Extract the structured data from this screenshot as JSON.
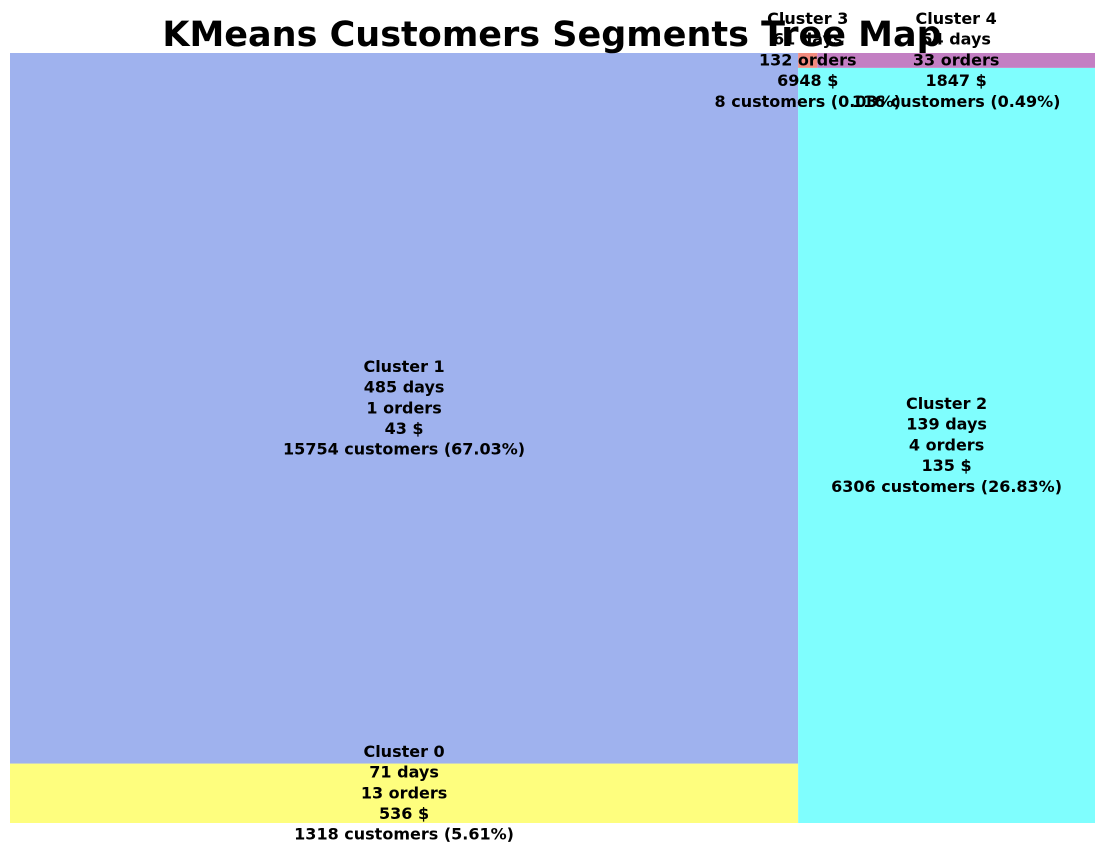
{
  "chart_data": {
    "type": "treemap",
    "title": "KMeans Customers Segments Tree Map",
    "clusters": [
      {
        "name": "Cluster 0",
        "days": "71 days",
        "orders": "13 orders",
        "amount": "536 $",
        "customers_label": "1318 customers (5.61%)",
        "customers": 1318,
        "share_pct": 5.61,
        "color": "#FEFE7E"
      },
      {
        "name": "Cluster 1",
        "days": "485 days",
        "orders": "1 orders",
        "amount": "43 $",
        "customers_label": "15754 customers (67.03%)",
        "customers": 15754,
        "share_pct": 67.03,
        "color": "#9FB2EE"
      },
      {
        "name": "Cluster 2",
        "days": "139 days",
        "orders": "4 orders",
        "amount": "135 $",
        "customers_label": "6306 customers (26.83%)",
        "customers": 6306,
        "share_pct": 26.83,
        "color": "#7FFEFE"
      },
      {
        "name": "Cluster 3",
        "days": "61 days",
        "orders": "132 orders",
        "amount": "6948 $",
        "customers_label": "8 customers (0.03%)",
        "customers": 8,
        "share_pct": 0.03,
        "color": "#F28B7E"
      },
      {
        "name": "Cluster 4",
        "days": "54 days",
        "orders": "33 orders",
        "amount": "1847 $",
        "customers_label": "116 customers (0.49%)",
        "customers": 116,
        "share_pct": 0.49,
        "color": "#C37FC3"
      }
    ]
  }
}
